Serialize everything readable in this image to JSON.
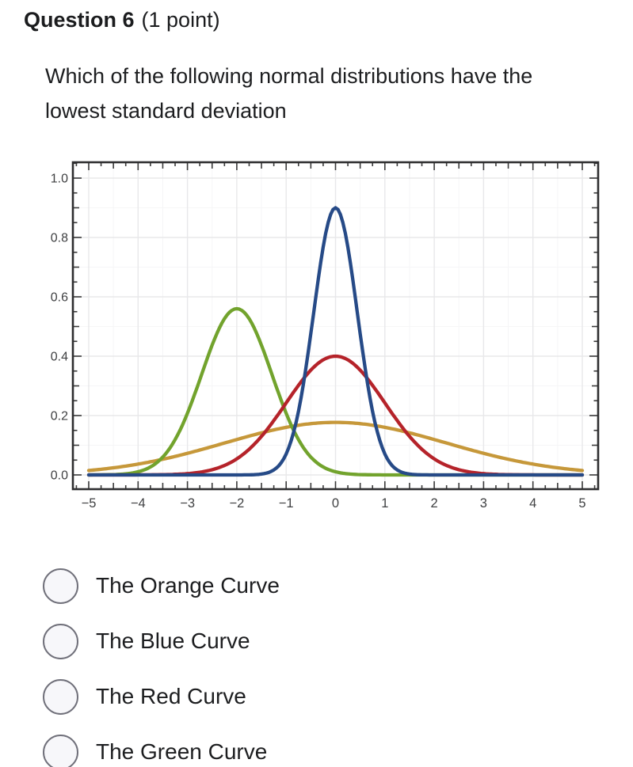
{
  "header": {
    "question_label": "Question 6",
    "points_label": "(1 point)"
  },
  "question": {
    "text": "Which of the following normal distributions have the lowest standard deviation"
  },
  "chart_data": {
    "type": "line",
    "title": "",
    "xlabel": "",
    "ylabel": "",
    "xlim": [
      -5.32,
      5.32
    ],
    "ylim": [
      -0.048,
      1.055
    ],
    "x_ticks": [
      -5,
      -4,
      -3,
      -2,
      -1,
      0,
      1,
      2,
      3,
      4,
      5
    ],
    "x_tick_labels": [
      "−5",
      "−4",
      "−3",
      "−2",
      "−1",
      "0",
      "1",
      "2",
      "3",
      "4",
      "5"
    ],
    "y_ticks": [
      0,
      0.2,
      0.4,
      0.6,
      0.8,
      1.0
    ],
    "y_tick_labels": [
      "0.0",
      "0.2",
      "0.4",
      "0.6",
      "0.8",
      "1.0"
    ],
    "grid": true,
    "legend": false,
    "frame": "all-sides-with-inward-ticks",
    "series": [
      {
        "name": "orange",
        "color": "#c6983a",
        "distribution": "normal",
        "mean": 0,
        "sd": 2.25,
        "peak": 0.177
      },
      {
        "name": "green",
        "color": "#72a32d",
        "distribution": "normal",
        "mean": -2,
        "sd": 0.71,
        "peak": 0.56
      },
      {
        "name": "red",
        "color": "#b5232a",
        "distribution": "normal",
        "mean": 0,
        "sd": 1.0,
        "peak": 0.4
      },
      {
        "name": "blue",
        "color": "#264a87",
        "distribution": "normal",
        "mean": 0,
        "sd": 0.443,
        "peak": 0.9
      }
    ]
  },
  "options": [
    {
      "label": "The Orange Curve",
      "selected": false
    },
    {
      "label": "The Blue Curve",
      "selected": false
    },
    {
      "label": "The Red Curve",
      "selected": false
    },
    {
      "label": "The Green Curve",
      "selected": false
    }
  ]
}
